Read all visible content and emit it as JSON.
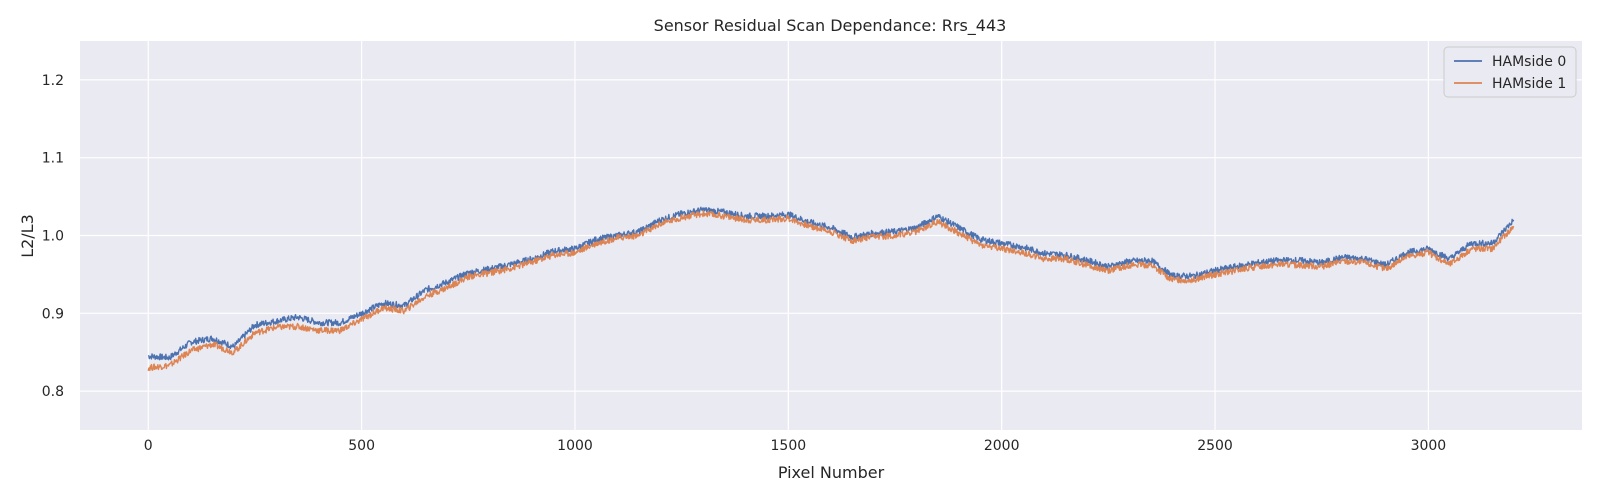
{
  "chart_data": {
    "type": "line",
    "title": "Sensor Residual Scan Dependance: Rrs_443",
    "xlabel": "Pixel Number",
    "ylabel": "L2/L3",
    "xlim": [
      -160,
      3360
    ],
    "ylim": [
      0.75,
      1.25
    ],
    "xticks": [
      0,
      500,
      1000,
      1500,
      2000,
      2500,
      3000
    ],
    "yticks": [
      0.8,
      0.9,
      1.0,
      1.1,
      1.2
    ],
    "xtick_labels": [
      "0",
      "500",
      "1000",
      "1500",
      "2000",
      "2500",
      "3000"
    ],
    "ytick_labels": [
      "0.8",
      "0.9",
      "1.0",
      "1.1",
      "1.2"
    ],
    "grid": true,
    "legend_position": "top-right",
    "series": [
      {
        "name": "HAMside 0",
        "color": "#4c72b0",
        "x": [
          0,
          50,
          100,
          150,
          200,
          250,
          300,
          350,
          400,
          450,
          500,
          550,
          600,
          650,
          700,
          750,
          800,
          850,
          900,
          950,
          1000,
          1050,
          1100,
          1150,
          1200,
          1250,
          1300,
          1350,
          1400,
          1450,
          1500,
          1550,
          1600,
          1650,
          1700,
          1750,
          1800,
          1850,
          1900,
          1950,
          2000,
          2050,
          2100,
          2150,
          2200,
          2250,
          2300,
          2350,
          2400,
          2450,
          2500,
          2550,
          2600,
          2650,
          2700,
          2750,
          2800,
          2850,
          2900,
          2950,
          3000,
          3050,
          3100,
          3150,
          3200
        ],
        "values": [
          0.845,
          0.843,
          0.863,
          0.868,
          0.857,
          0.885,
          0.89,
          0.895,
          0.888,
          0.888,
          0.9,
          0.913,
          0.91,
          0.93,
          0.94,
          0.952,
          0.957,
          0.963,
          0.97,
          0.98,
          0.983,
          0.995,
          1.0,
          1.005,
          1.02,
          1.028,
          1.033,
          1.03,
          1.025,
          1.025,
          1.027,
          1.017,
          1.01,
          0.998,
          1.003,
          1.005,
          1.01,
          1.025,
          1.01,
          0.995,
          0.99,
          0.985,
          0.977,
          0.975,
          0.968,
          0.96,
          0.967,
          0.968,
          0.948,
          0.948,
          0.955,
          0.96,
          0.965,
          0.968,
          0.968,
          0.965,
          0.972,
          0.97,
          0.962,
          0.978,
          0.983,
          0.97,
          0.99,
          0.99,
          1.02
        ]
      },
      {
        "name": "HAMside 1",
        "color": "#dd8452",
        "x": [
          0,
          50,
          100,
          150,
          200,
          250,
          300,
          350,
          400,
          450,
          500,
          550,
          600,
          650,
          700,
          750,
          800,
          850,
          900,
          950,
          1000,
          1050,
          1100,
          1150,
          1200,
          1250,
          1300,
          1350,
          1400,
          1450,
          1500,
          1550,
          1600,
          1650,
          1700,
          1750,
          1800,
          1850,
          1900,
          1950,
          2000,
          2050,
          2100,
          2150,
          2200,
          2250,
          2300,
          2350,
          2400,
          2450,
          2500,
          2550,
          2600,
          2650,
          2700,
          2750,
          2800,
          2850,
          2900,
          2950,
          3000,
          3050,
          3100,
          3150,
          3200
        ],
        "values": [
          0.83,
          0.833,
          0.852,
          0.86,
          0.85,
          0.875,
          0.882,
          0.883,
          0.878,
          0.878,
          0.892,
          0.907,
          0.903,
          0.922,
          0.933,
          0.947,
          0.952,
          0.958,
          0.966,
          0.975,
          0.978,
          0.99,
          0.997,
          1.0,
          1.015,
          1.023,
          1.028,
          1.025,
          1.02,
          1.02,
          1.022,
          1.012,
          1.005,
          0.993,
          0.998,
          1.0,
          1.005,
          1.018,
          1.003,
          0.988,
          0.983,
          0.978,
          0.97,
          0.97,
          0.962,
          0.955,
          0.962,
          0.962,
          0.943,
          0.943,
          0.95,
          0.955,
          0.96,
          0.963,
          0.962,
          0.96,
          0.967,
          0.965,
          0.957,
          0.973,
          0.978,
          0.963,
          0.983,
          0.983,
          1.012
        ]
      }
    ]
  }
}
